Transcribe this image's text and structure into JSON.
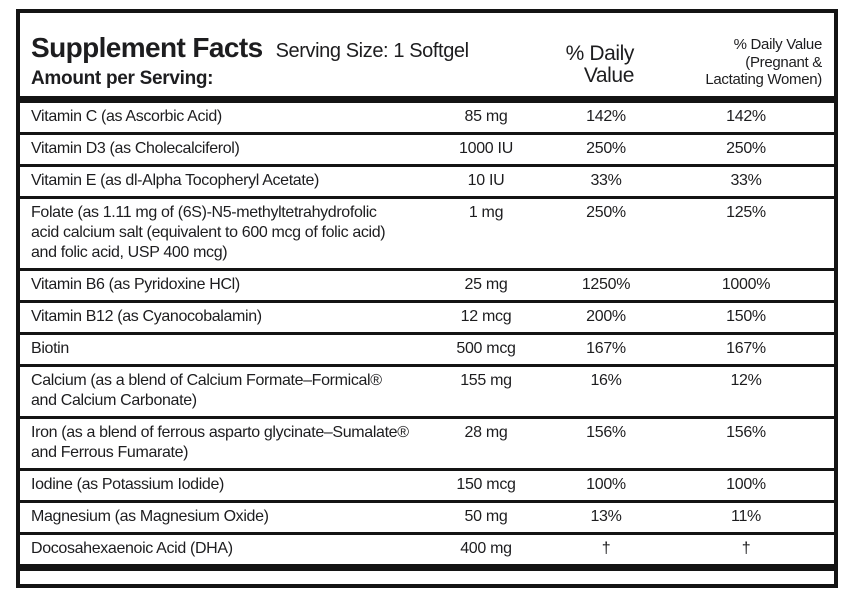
{
  "label": {
    "title": "Supplement Facts",
    "serving_size": "Serving Size: 1 Softgel",
    "amount_per_serving": "Amount per Serving:",
    "col_daily_value": "% Daily\nValue",
    "col_daily_value_pregnant": "% Daily Value\n(Pregnant &\nLactating Women)"
  },
  "colors": {
    "text": "#1d1d1f",
    "border": "#141414",
    "background": "#ffffff"
  },
  "rows": [
    {
      "name": "Vitamin C (as Ascorbic Acid)",
      "amount": "85 mg",
      "dv": "142%",
      "dv_pregnant": "142%"
    },
    {
      "name": "Vitamin D3 (as Cholecalciferol)",
      "amount": "1000 IU",
      "dv": "250%",
      "dv_pregnant": "250%"
    },
    {
      "name": "Vitamin E (as dl-Alpha Tocopheryl Acetate)",
      "amount": "10 IU",
      "dv": "33%",
      "dv_pregnant": "33%"
    },
    {
      "name": "Folate (as 1.11 mg of (6S)-N5-methyltetrahydrofolic\nacid calcium salt (equivalent to 600 mcg of folic acid)\nand folic acid, USP 400 mcg)",
      "amount": "1 mg",
      "dv": "250%",
      "dv_pregnant": "125%"
    },
    {
      "name": "Vitamin B6 (as Pyridoxine HCl)",
      "amount": "25 mg",
      "dv": "1250%",
      "dv_pregnant": "1000%"
    },
    {
      "name": "Vitamin B12 (as Cyanocobalamin)",
      "amount": "12 mcg",
      "dv": "200%",
      "dv_pregnant": "150%"
    },
    {
      "name": "Biotin",
      "amount": "500 mcg",
      "dv": "167%",
      "dv_pregnant": "167%"
    },
    {
      "name": "Calcium (as a blend of Calcium Formate–Formical®\nand Calcium Carbonate)",
      "amount": "155 mg",
      "dv": "16%",
      "dv_pregnant": "12%"
    },
    {
      "name": "Iron (as a blend of ferrous asparto glycinate–Sumalate®\nand Ferrous Fumarate)",
      "amount": "28 mg",
      "dv": "156%",
      "dv_pregnant": "156%"
    },
    {
      "name": "Iodine (as Potassium Iodide)",
      "amount": "150 mcg",
      "dv": "100%",
      "dv_pregnant": "100%"
    },
    {
      "name": "Magnesium (as Magnesium Oxide)",
      "amount": "50 mg",
      "dv": "13%",
      "dv_pregnant": "11%"
    },
    {
      "name": "Docosahexaenoic Acid (DHA)",
      "amount": "400 mg",
      "dv": "†",
      "dv_pregnant": "†"
    }
  ]
}
